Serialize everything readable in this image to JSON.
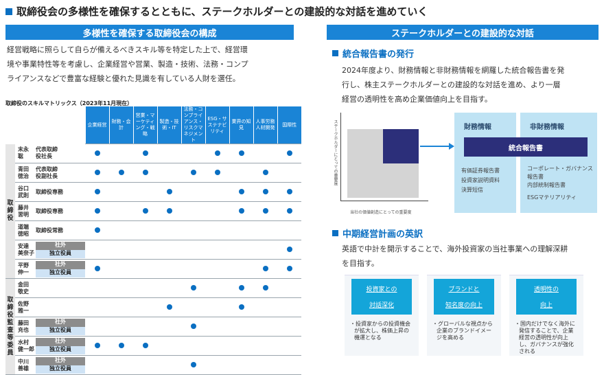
{
  "title": "取締役会の多様性を確保するとともに、ステークホルダーとの建設的な対話を進めていく",
  "left": {
    "bar": "多様性を確保する取締役会の構成",
    "lines": [
      "経営戦略に照らして自らが備えるべきスキル等を特定した上で、経営環",
      "境や事業特性等を考慮し、企業経営や営業、製造・技術、法務・コンプ",
      "ライアンスなどで豊富な経験と優れた見識を有している人財を選任。"
    ],
    "matrix_caption": "取締役のスキルマトリックス（2023年11月現在）",
    "headers": [
      "企業経営",
      "財務・会計",
      "営業・マーケティング・戦略",
      "製造・技術・IT",
      "法務・コンプライアンス・リスクマネジメント",
      "ESG・サステナビリティ",
      "業界の知見",
      "人事労務人材開発",
      "国際性"
    ],
    "group1": "取締役",
    "group2": "取締役監査等委員",
    "ext_label": "社外",
    "ind_label": "独立役員"
  },
  "right": {
    "bar": "ステークホルダーとの建設的な対話",
    "sub1": "統合報告書の発行",
    "lines1": [
      "2024年度より、財務情報と非財務情報を網羅した統合報告書を発",
      "行し、株主ステークホルダーとの建設的な対話を進め、より一層",
      "経営の透明性を高め企業価値向上を目指す。"
    ],
    "diagram": {
      "y_label": "ステークホルダーにとっての重要度",
      "x_label": "当社の価値創造にとっての重要度",
      "fin_title": "財務情報",
      "nonfin_title": "非財務情報",
      "center": "統合報告書",
      "fin_items": [
        "有価証券報告書",
        "投資家説明資料",
        "決算短信"
      ],
      "nonfin_items": [
        "コーポレート・ガバナンス報告書",
        "内部統制報告書",
        "ESGマテリアリティ"
      ]
    },
    "sub2": "中期経営計画の英訳",
    "lines2": [
      "英語で中計を開示することで、海外投資家の当社事業への理解深耕",
      "を目指す。"
    ],
    "cards": [
      {
        "h1": "投資家との",
        "h2": "対話深化",
        "body": "・投資家からの投資機会が拡大し、株価上昇の機運となる"
      },
      {
        "h1": "ブランドと",
        "h2": "知名度の向上",
        "body": "・グローバルな視点から企業のブランドイメージを高める"
      },
      {
        "h1": "透明性の",
        "h2": "向上",
        "body": "・国内だけでなく海外に発信することで、企業経営の透明性が向上し、ガバナンスが強化される"
      }
    ]
  },
  "rows": [
    {
      "name": "末永聡",
      "role": "代表取締役社長",
      "type": "plain",
      "dots": [
        1,
        0,
        1,
        0,
        0,
        1,
        1,
        0,
        1
      ]
    },
    {
      "name": "青田徳治",
      "role": "代表取締役副社長",
      "type": "plain",
      "dots": [
        1,
        1,
        1,
        0,
        1,
        1,
        0,
        1,
        0
      ]
    },
    {
      "name": "谷口武則",
      "role": "取締役専務",
      "type": "plain",
      "dots": [
        1,
        0,
        0,
        1,
        0,
        0,
        1,
        1,
        1
      ]
    },
    {
      "name": "藤井習明",
      "role": "取締役専務",
      "type": "plain",
      "dots": [
        1,
        0,
        1,
        1,
        0,
        0,
        1,
        1,
        1
      ]
    },
    {
      "name": "道端徳昭",
      "role": "取締役常務",
      "type": "plain",
      "dots": [
        1,
        0,
        0,
        0,
        0,
        0,
        0,
        0,
        0
      ]
    },
    {
      "name": "安達美奈子",
      "role": "",
      "type": "ext",
      "dots": [
        0,
        0,
        0,
        0,
        0,
        0,
        0,
        0,
        1
      ]
    },
    {
      "name": "平野伸一",
      "role": "",
      "type": "ext",
      "dots": [
        1,
        0,
        0,
        0,
        0,
        0,
        0,
        1,
        1
      ]
    },
    {
      "name": "金田敬史",
      "role": "",
      "type": "plain",
      "dots": [
        0,
        0,
        0,
        0,
        1,
        0,
        1,
        1,
        0
      ]
    },
    {
      "name": "佐野雅一",
      "role": "",
      "type": "plain",
      "dots": [
        0,
        0,
        0,
        1,
        0,
        0,
        1,
        0,
        0
      ]
    },
    {
      "name": "藤田充也",
      "role": "",
      "type": "ext",
      "dots": [
        0,
        0,
        0,
        0,
        1,
        0,
        0,
        0,
        0
      ]
    },
    {
      "name": "水村健一郎",
      "role": "",
      "type": "ext",
      "dots": [
        1,
        1,
        1,
        0,
        0,
        0,
        0,
        0,
        0
      ]
    },
    {
      "name": "中川善雄",
      "role": "",
      "type": "ext",
      "dots": [
        0,
        0,
        0,
        0,
        1,
        0,
        0,
        0,
        0
      ]
    }
  ]
}
